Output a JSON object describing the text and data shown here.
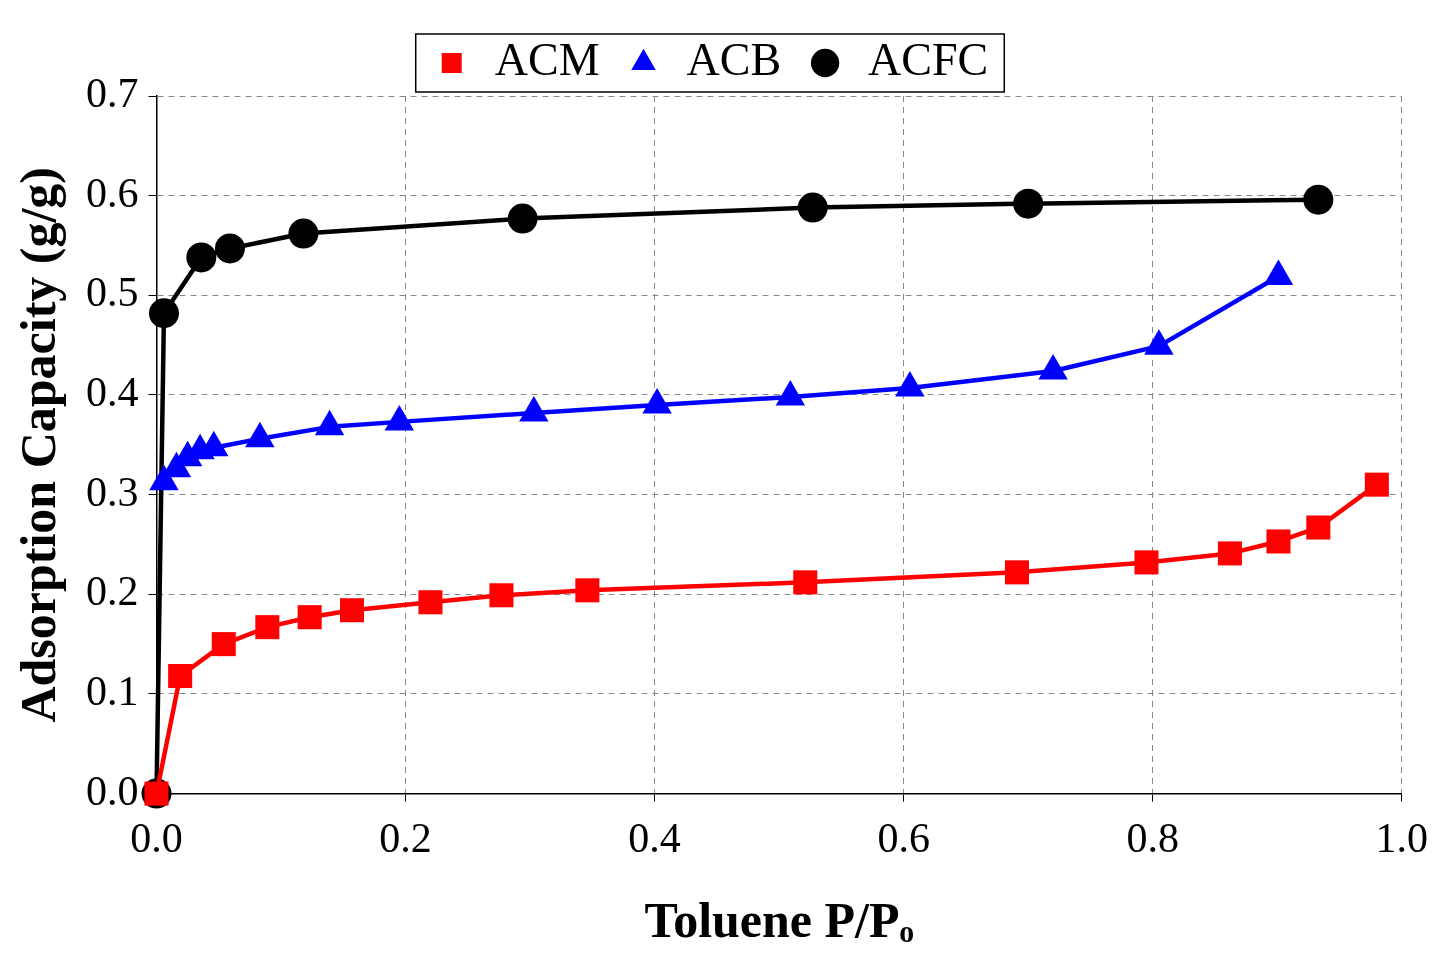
{
  "chart_data": {
    "type": "line",
    "xlabel": "Toluene P/Pₒ",
    "ylabel": "Adsorption Capacity (g/g)",
    "xlim": [
      0,
      1
    ],
    "ylim": [
      0,
      0.7
    ],
    "xticks": [
      {
        "value": 0,
        "label": "0.0"
      },
      {
        "value": 0.2,
        "label": "0.2"
      },
      {
        "value": 0.4,
        "label": "0.4"
      },
      {
        "value": 0.6,
        "label": "0.6"
      },
      {
        "value": 0.8,
        "label": "0.8"
      },
      {
        "value": 1,
        "label": "1.0"
      }
    ],
    "yticks": [
      {
        "value": 0,
        "label": "0.0"
      },
      {
        "value": 0.1,
        "label": "0.1"
      },
      {
        "value": 0.2,
        "label": "0.2"
      },
      {
        "value": 0.3,
        "label": "0.3"
      },
      {
        "value": 0.4,
        "label": "0.4"
      },
      {
        "value": 0.5,
        "label": "0.5"
      },
      {
        "value": 0.6,
        "label": "0.6"
      },
      {
        "value": 0.7,
        "label": "0.7"
      }
    ],
    "grid": true,
    "legend": "top",
    "line_style": "solid",
    "series": [
      {
        "name": "ACM",
        "color": "#ff0000",
        "marker": "square",
        "x": [
          0,
          0.019,
          0.054,
          0.089,
          0.123,
          0.157,
          0.22,
          0.277,
          0.346,
          0.521,
          0.691,
          0.795,
          0.862,
          0.901,
          0.933,
          0.98
        ],
        "values": [
          0,
          0.118,
          0.15,
          0.167,
          0.177,
          0.184,
          0.192,
          0.199,
          0.204,
          0.212,
          0.222,
          0.232,
          0.241,
          0.253,
          0.267,
          0.31
        ]
      },
      {
        "name": "ACB",
        "color": "#0000ff",
        "marker": "triangle",
        "x": [
          0.006,
          0.016,
          0.025,
          0.035,
          0.046,
          0.083,
          0.139,
          0.195,
          0.303,
          0.402,
          0.509,
          0.605,
          0.72,
          0.805,
          0.901
        ],
        "values": [
          0.313,
          0.326,
          0.337,
          0.344,
          0.347,
          0.356,
          0.368,
          0.373,
          0.382,
          0.39,
          0.398,
          0.407,
          0.424,
          0.449,
          0.519
        ]
      },
      {
        "name": "ACFC",
        "color": "#000000",
        "marker": "circle",
        "x": [
          0,
          0.006,
          0.036,
          0.059,
          0.118,
          0.294,
          0.527,
          0.7,
          0.933
        ],
        "values": [
          0,
          0.482,
          0.538,
          0.547,
          0.562,
          0.577,
          0.588,
          0.592,
          0.596
        ]
      }
    ]
  }
}
